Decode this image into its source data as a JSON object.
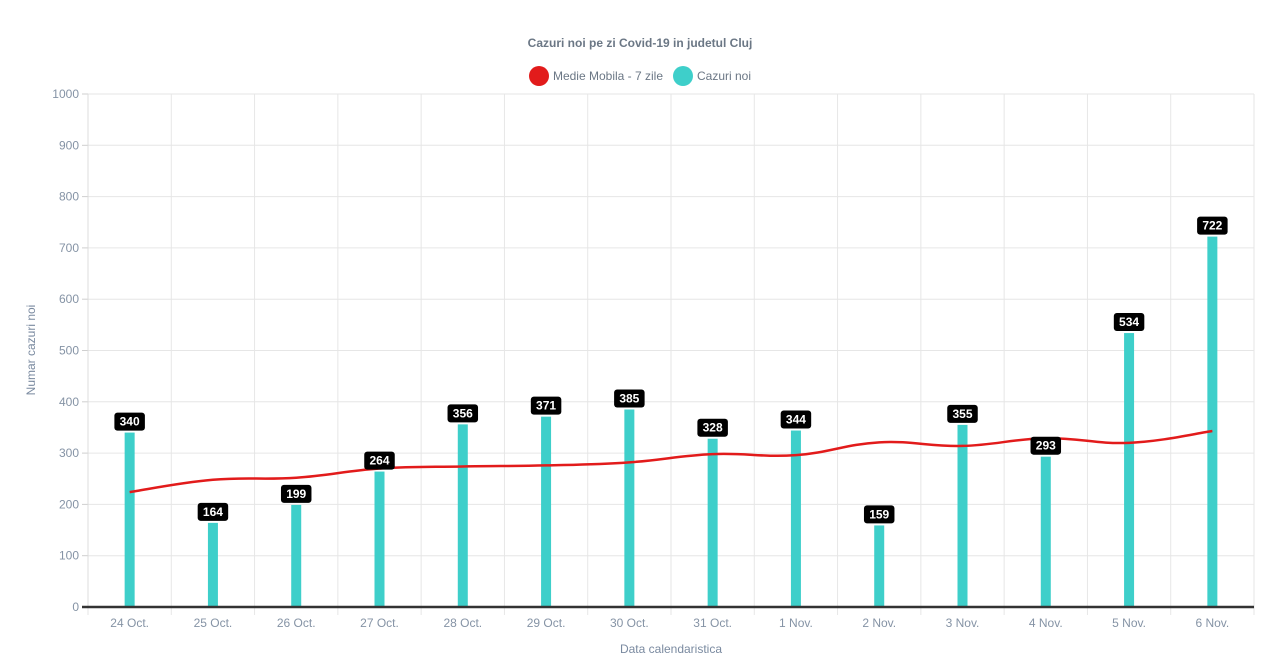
{
  "chart_data": {
    "type": "bar",
    "title": "Cazuri noi pe zi Covid-19 in judetul Cluj",
    "xlabel": "Data calendaristica",
    "ylabel": "Numar cazuri noi",
    "ylim": [
      0,
      1000
    ],
    "yticks": [
      0,
      100,
      200,
      300,
      400,
      500,
      600,
      700,
      800,
      900,
      1000
    ],
    "grid": true,
    "legend_position": "top",
    "categories": [
      "24 Oct.",
      "25 Oct.",
      "26 Oct.",
      "27 Oct.",
      "28 Oct.",
      "29 Oct.",
      "30 Oct.",
      "31 Oct.",
      "1 Nov.",
      "2 Nov.",
      "3 Nov.",
      "4 Nov.",
      "5 Nov.",
      "6 Nov."
    ],
    "series": [
      {
        "name": "Medie Mobila - 7 zile",
        "type": "line",
        "color": "#e21b1b",
        "values": [
          224,
          248,
          252,
          270,
          274,
          276,
          282,
          298,
          296,
          321,
          314,
          329,
          320,
          343
        ]
      },
      {
        "name": "Cazuri noi",
        "type": "bar",
        "color": "#3ecfca",
        "values": [
          340,
          164,
          199,
          264,
          356,
          371,
          385,
          328,
          344,
          159,
          355,
          293,
          534,
          722
        ]
      }
    ]
  }
}
